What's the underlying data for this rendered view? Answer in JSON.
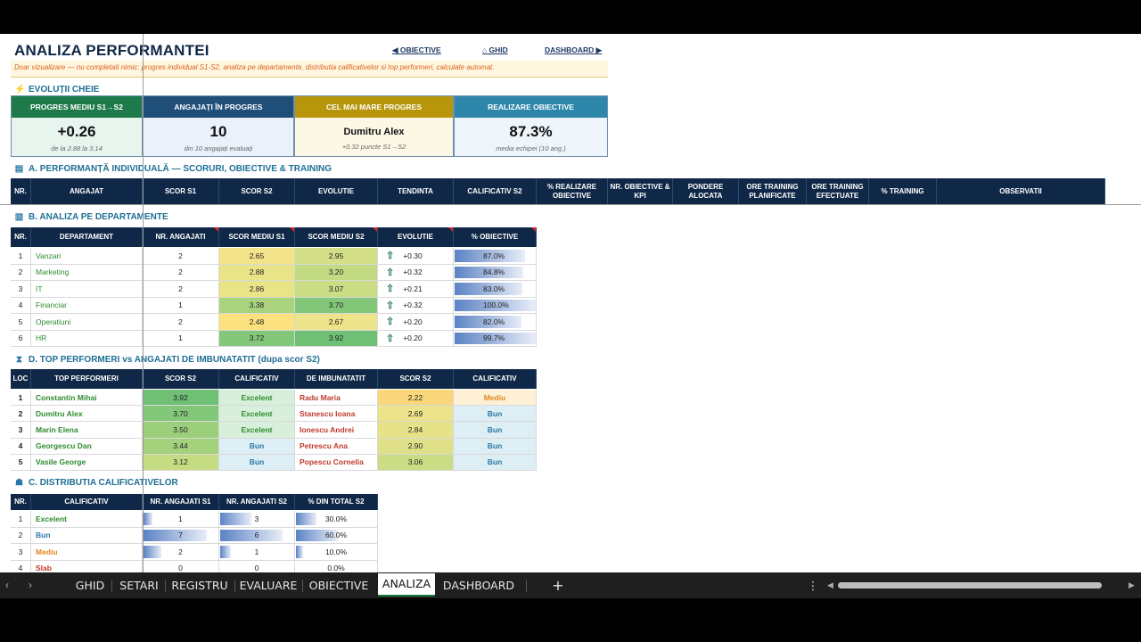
{
  "title": "ANALIZA PERFORMANTEI",
  "nav": {
    "objective": "◀ OBIECTIVE",
    "ghid": "⌂ GHID",
    "dashboard": "DASHBOARD ▶"
  },
  "note": "Doar vizualizare — nu completati nimic: progres individual S1-S2, analiza pe departamente, distributia calificativelor si top performeri, calculate automat.",
  "sections": {
    "evolutii": "EVOLUȚII CHEIE",
    "a": "A. PERFORMANȚĂ INDIVIDUALĂ — SCORURI, OBIECTIVE & TRAINING",
    "b": "B. ANALIZA PE DEPARTAMENTE",
    "d": "D. TOP PERFORMERI vs ANGAJATI DE IMBUNATATIT (dupa scor S2)",
    "c": "C. DISTRIBUTIA CALIFICATIVELOR"
  },
  "kpis": [
    {
      "header": "PROGRES MEDIU S1→S2",
      "value": "+0.26",
      "sub": "de la 2.88 la 3.14",
      "header_color": "#1e7a4b",
      "bg": "#e8f5ee"
    },
    {
      "header": "ANGAJAȚI ÎN PROGRES",
      "value": "10",
      "sub": "din 10 angajați evaluați",
      "header_color": "#1f4e79",
      "bg": "#eaf1fa"
    },
    {
      "header": "CEL MAI MARE PROGRES",
      "value": "Dumitru Alex",
      "sub": "+0.32 puncte S1→S2",
      "header_color": "#b8960c",
      "bg": "#fdf8e6"
    },
    {
      "header": "REALIZARE OBIECTIVE",
      "value": "87.3%",
      "sub": "media echipei (10 ang.)",
      "header_color": "#2e86ab",
      "bg": "#eef6fb"
    }
  ],
  "individual_headers": [
    "NR.",
    "ANGAJAT",
    "SCOR S1",
    "SCOR S2",
    "EVOLUTIE",
    "TENDINTA",
    "CALIFICATIV S2",
    "% REALIZARE OBIECTIVE",
    "NR. OBIECTIVE & KPI",
    "PONDERE ALOCATA",
    "ORE TRAINING PLANIFICATE",
    "ORE TRAINING EFECTUATE",
    "% TRAINING",
    "OBSERVATII"
  ],
  "dept_headers": [
    "NR.",
    "DEPARTAMENT",
    "NR. ANGAJATI",
    "SCOR MEDIU S1",
    "SCOR MEDIU S2",
    "EVOLUTIE",
    "% OBIECTIVE"
  ],
  "departments": [
    {
      "nr": "1",
      "name": "Vanzari",
      "count": "2",
      "s1": "2.65",
      "s2": "2.95",
      "evo": "+0.30",
      "pct": "87.0%",
      "pct_val": 0.87,
      "c1": "#f3e38a",
      "c2": "#d3df86"
    },
    {
      "nr": "2",
      "name": "Marketing",
      "count": "2",
      "s1": "2.88",
      "s2": "3.20",
      "evo": "+0.32",
      "pct": "84.8%",
      "pct_val": 0.848,
      "c1": "#e9e488",
      "c2": "#c2da82"
    },
    {
      "nr": "3",
      "name": "IT",
      "count": "2",
      "s1": "2.86",
      "s2": "3.07",
      "evo": "+0.21",
      "pct": "83.0%",
      "pct_val": 0.83,
      "c1": "#e9e488",
      "c2": "#cadd84"
    },
    {
      "nr": "4",
      "name": "Financiar",
      "count": "1",
      "s1": "3.38",
      "s2": "3.70",
      "evo": "+0.32",
      "pct": "100.0%",
      "pct_val": 1.0,
      "c1": "#a9d47d",
      "c2": "#82c77a"
    },
    {
      "nr": "5",
      "name": "Operatiuni",
      "count": "2",
      "s1": "2.48",
      "s2": "2.67",
      "evo": "+0.20",
      "pct": "82.0%",
      "pct_val": 0.82,
      "c1": "#fbe27e",
      "c2": "#ece38a"
    },
    {
      "nr": "6",
      "name": "HR",
      "count": "1",
      "s1": "3.72",
      "s2": "3.92",
      "evo": "+0.20",
      "pct": "99.7%",
      "pct_val": 0.997,
      "c1": "#82c77a",
      "c2": "#6fc075"
    }
  ],
  "top_headers": [
    "LOC",
    "TOP PERFORMERI",
    "SCOR S2",
    "CALIFICATIV",
    "DE IMBUNATATIT",
    "SCOR S2",
    "CALIFICATIV"
  ],
  "top": [
    {
      "loc": "1",
      "top": "Constantin Mihai",
      "ts": "3.92",
      "tc": "Excelent",
      "low": "Radu Maria",
      "ls": "2.22",
      "lc": "Mediu",
      "tsc": "#6fc075",
      "lsc": "#f9d77a",
      "lcbg": "#fdf0d5",
      "lcc": "#e08a1e"
    },
    {
      "loc": "2",
      "top": "Dumitru Alex",
      "ts": "3.70",
      "tc": "Excelent",
      "low": "Stanescu Ioana",
      "ls": "2.69",
      "lc": "Bun",
      "tsc": "#82c77a",
      "lsc": "#ece38a",
      "lcbg": "#ddeef5",
      "lcc": "#2a78a8"
    },
    {
      "loc": "3",
      "top": "Marin Elena",
      "ts": "3.50",
      "tc": "Excelent",
      "low": "Ionescu Andrei",
      "ls": "2.84",
      "lc": "Bun",
      "tsc": "#9ccf7c",
      "lsc": "#e5e288",
      "lcbg": "#ddeef5",
      "lcc": "#2a78a8"
    },
    {
      "loc": "4",
      "top": "Georgescu Dan",
      "ts": "3.44",
      "tc": "Bun",
      "low": "Petrescu Ana",
      "ls": "2.90",
      "lc": "Bun",
      "tsc": "#a4d17c",
      "lsc": "#dfe087",
      "lcbg": "#ddeef5",
      "lcc": "#2a78a8"
    },
    {
      "loc": "5",
      "top": "Vasile George",
      "ts": "3.12",
      "tc": "Bun",
      "low": "Popescu Cornelia",
      "ls": "3.06",
      "lc": "Bun",
      "tsc": "#c6dc83",
      "lsc": "#cbdd84",
      "lcbg": "#ddeef5",
      "lcc": "#2a78a8"
    }
  ],
  "dist_headers": [
    "NR.",
    "CALIFICATIV",
    "NR. ANGAJATI S1",
    "NR. ANGAJATI S2",
    "% DIN TOTAL S2"
  ],
  "distribution": [
    {
      "nr": "1",
      "cal": "Excelent",
      "s1": "1",
      "s2": "3",
      "pct": "30.0%",
      "f1": 0.143,
      "f2": 0.5,
      "f3": 0.3,
      "color": "#2e8b2e"
    },
    {
      "nr": "2",
      "cal": "Bun",
      "s1": "7",
      "s2": "6",
      "pct": "60.0%",
      "f1": 1.0,
      "f2": 1.0,
      "f3": 0.6,
      "color": "#2a78a8"
    },
    {
      "nr": "3",
      "cal": "Mediu",
      "s1": "2",
      "s2": "1",
      "pct": "10.0%",
      "f1": 0.286,
      "f2": 0.167,
      "f3": 0.1,
      "color": "#e08a1e"
    },
    {
      "nr": "4",
      "cal": "Slab",
      "s1": "0",
      "s2": "0",
      "pct": "0.0%",
      "f1": 0,
      "f2": 0,
      "f3": 0,
      "color": "#c0392b"
    }
  ],
  "tabs": [
    "GHID",
    "SETARI",
    "REGISTRU",
    "EVALUARE",
    "OBIECTIVE",
    "ANALIZA",
    "DASHBOARD"
  ],
  "active_tab": "ANALIZA",
  "add_sheet": "+",
  "more_menu": "⋮",
  "prev_arrow": "‹",
  "next_arrow": "›"
}
